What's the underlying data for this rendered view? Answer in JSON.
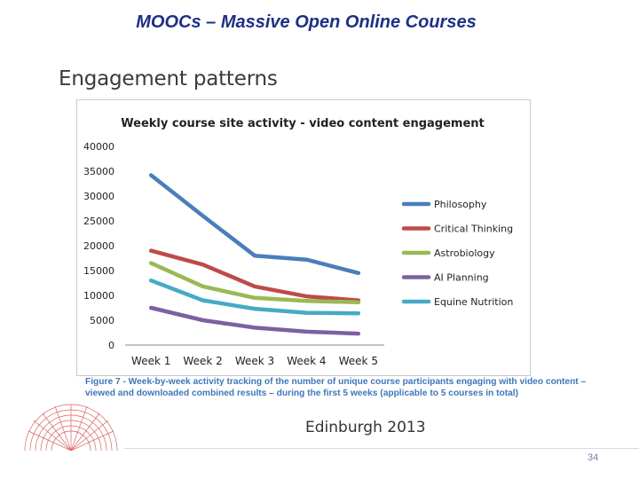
{
  "slide": {
    "title": "MOOCs – Massive Open Online Courses",
    "section_title": "Engagement patterns",
    "caption": "Figure 7 - Week-by-week activity tracking of the number of unique course participants engaging with video content – viewed and downloaded combined results – during the first 5 weeks (applicable to 5 courses in total)",
    "event": "Edinburgh 2013",
    "page_number": "34",
    "logo_icon": "university-seal-icon"
  },
  "chart_data": {
    "type": "line",
    "title": "Weekly course site activity - video content engagement",
    "xlabel": "",
    "ylabel": "",
    "categories": [
      "Week 1",
      "Week 2",
      "Week 3",
      "Week 4",
      "Week 5"
    ],
    "ylim": [
      0,
      40000
    ],
    "yticks": [
      0,
      5000,
      10000,
      15000,
      20000,
      25000,
      30000,
      35000,
      40000
    ],
    "grid": false,
    "legend_position": "right",
    "series": [
      {
        "name": "Philosophy",
        "color": "#4a7ebb",
        "values": [
          34200,
          26000,
          18000,
          17200,
          14500
        ]
      },
      {
        "name": "Critical Thinking",
        "color": "#be4b48",
        "values": [
          19000,
          16200,
          11800,
          9800,
          9000
        ]
      },
      {
        "name": "Astrobiology",
        "color": "#98b954",
        "values": [
          16500,
          11800,
          9500,
          8900,
          8600
        ]
      },
      {
        "name": "AI Planning",
        "color": "#7d60a0",
        "values": [
          7500,
          5000,
          3500,
          2700,
          2300
        ]
      },
      {
        "name": "Equine Nutrition",
        "color": "#46aac5",
        "values": [
          13000,
          9000,
          7300,
          6500,
          6400
        ]
      }
    ]
  }
}
